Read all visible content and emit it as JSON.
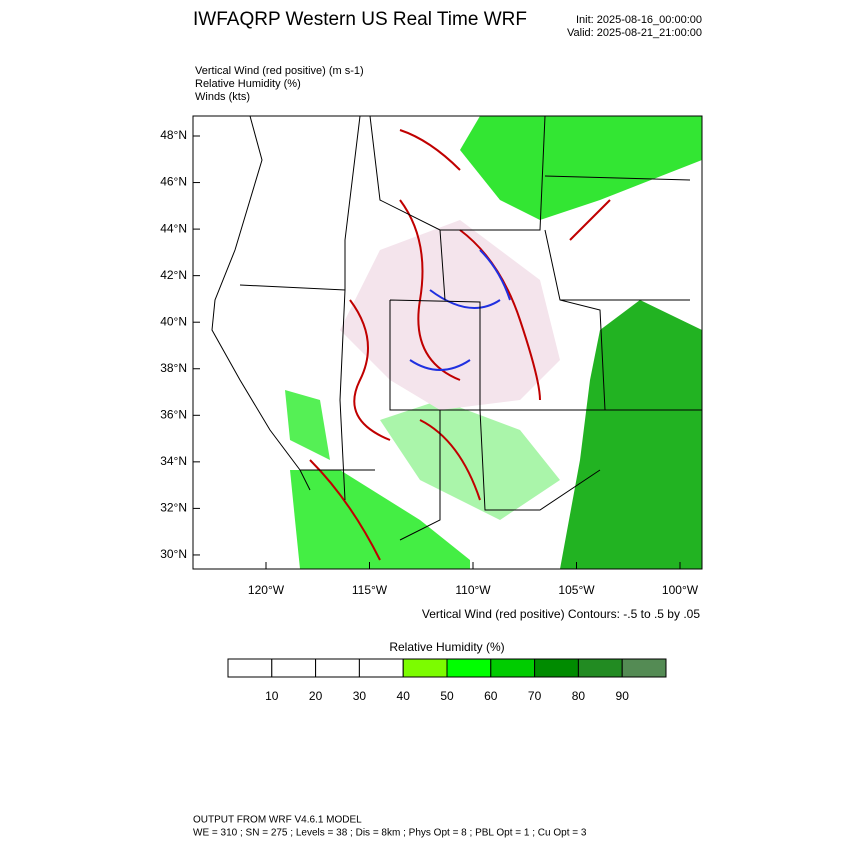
{
  "header": {
    "title": "IWFAQRP Western US Real Time WRF",
    "init": "Init: 2025-08-16_00:00:00",
    "valid": "Valid: 2025-08-21_21:00:00"
  },
  "fields": [
    "Vertical Wind (red positive)   (m s-1)",
    "Relative Humidity   (%)",
    "Winds   (kts)"
  ],
  "map": {
    "lat_labels": [
      "48°N",
      "46°N",
      "44°N",
      "42°N",
      "40°N",
      "38°N",
      "36°N",
      "34°N",
      "32°N",
      "30°N"
    ],
    "lon_labels": [
      "120°W",
      "115°W",
      "110°W",
      "105°W",
      "100°W"
    ],
    "contour_note": "Vertical Wind (red positive) Contours: -.5 to .5 by .05"
  },
  "colorbar": {
    "title": "Relative Humidity  (%)",
    "labels": [
      "10",
      "20",
      "30",
      "40",
      "50",
      "60",
      "70",
      "80",
      "90"
    ],
    "colors": [
      "#ffffff",
      "#ffffff",
      "#ffffff",
      "#ffffff",
      "#7cfc00",
      "#00ff00",
      "#00cc00",
      "#008b00",
      "#228b22",
      "#548b54"
    ]
  },
  "footer": {
    "line1": "OUTPUT FROM WRF V4.6.1 MODEL",
    "line2": "WE = 310 ; SN = 275 ; Levels = 38 ; Dis = 8km ; Phys Opt = 8 ; PBL Opt = 1 ; Cu Opt = 3"
  }
}
